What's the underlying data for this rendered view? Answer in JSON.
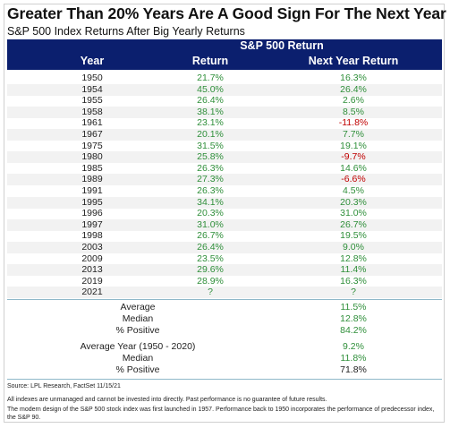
{
  "title": "Greater Than 20% Years Are A Good Sign For The Next Year",
  "subtitle": "S&P 500 Index Returns After Big Yearly Returns",
  "header": {
    "group": "S&P 500 Return",
    "year": "Year",
    "return": "Return",
    "next": "Next Year Return"
  },
  "rows": [
    {
      "year": "1950",
      "ret": "21.7%",
      "next": "16.3%"
    },
    {
      "year": "1954",
      "ret": "45.0%",
      "next": "26.4%"
    },
    {
      "year": "1955",
      "ret": "26.4%",
      "next": "2.6%"
    },
    {
      "year": "1958",
      "ret": "38.1%",
      "next": "8.5%"
    },
    {
      "year": "1961",
      "ret": "23.1%",
      "next": "-11.8%"
    },
    {
      "year": "1967",
      "ret": "20.1%",
      "next": "7.7%"
    },
    {
      "year": "1975",
      "ret": "31.5%",
      "next": "19.1%"
    },
    {
      "year": "1980",
      "ret": "25.8%",
      "next": "-9.7%"
    },
    {
      "year": "1985",
      "ret": "26.3%",
      "next": "14.6%"
    },
    {
      "year": "1989",
      "ret": "27.3%",
      "next": "-6.6%"
    },
    {
      "year": "1991",
      "ret": "26.3%",
      "next": "4.5%"
    },
    {
      "year": "1995",
      "ret": "34.1%",
      "next": "20.3%"
    },
    {
      "year": "1996",
      "ret": "20.3%",
      "next": "31.0%"
    },
    {
      "year": "1997",
      "ret": "31.0%",
      "next": "26.7%"
    },
    {
      "year": "1998",
      "ret": "26.7%",
      "next": "19.5%"
    },
    {
      "year": "2003",
      "ret": "26.4%",
      "next": "9.0%"
    },
    {
      "year": "2009",
      "ret": "23.5%",
      "next": "12.8%"
    },
    {
      "year": "2013",
      "ret": "29.6%",
      "next": "11.4%"
    },
    {
      "year": "2019",
      "ret": "28.9%",
      "next": "16.3%"
    },
    {
      "year": "2021",
      "ret": "?",
      "next": "?"
    }
  ],
  "stats1": [
    {
      "label": "Average",
      "value": "11.5%"
    },
    {
      "label": "Median",
      "value": "12.8%"
    },
    {
      "label": "% Positive",
      "value": "84.2%"
    }
  ],
  "stats2": [
    {
      "label": "Average Year (1950 - 2020)",
      "value": "9.2%"
    },
    {
      "label": "Median",
      "value": "11.8%"
    },
    {
      "label": "% Positive",
      "value": "71.8%"
    }
  ],
  "footnotes": {
    "source": "Source: LPL Research, FactSet 11/15/21",
    "disclaimer": "All indexes are unmanaged and cannot be invested into directly. Past performance is no guarantee of future results.",
    "design": "The modern design of the S&P 500 stock index was first launched in 1957. Performance back to 1950 incorporates the performance of predecessor index, the S&P 90."
  },
  "colors": {
    "header_bg": "#0b1f6e",
    "positive": "#2f8f3a",
    "negative": "#c00000"
  }
}
